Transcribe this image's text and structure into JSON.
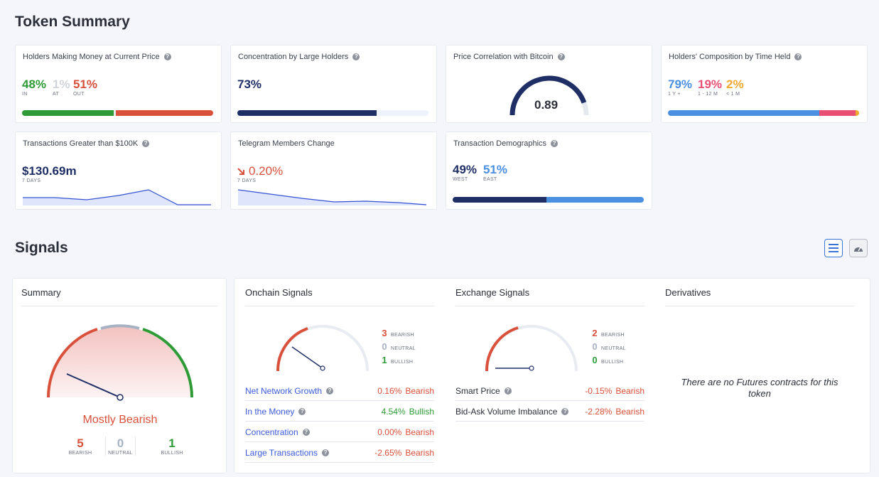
{
  "token_summary": {
    "title": "Token Summary",
    "holders_money": {
      "title": "Holders Making Money at Current Price",
      "in_value": "48%",
      "in_label": "IN",
      "at_value": "1%",
      "at_label": "AT",
      "out_value": "51%",
      "out_label": "OUT",
      "fractions": [
        0.48,
        0.01,
        0.51
      ]
    },
    "concentration": {
      "title": "Concentration by Large Holders",
      "value": "73%",
      "fraction": 0.73
    },
    "price_correlation": {
      "title": "Price Correlation with Bitcoin",
      "value": "0.89",
      "fraction": 0.89
    },
    "composition": {
      "title": "Holders' Composition by Time Held",
      "y1_value": "79%",
      "y1_label": "1 Y +",
      "m12_value": "19%",
      "m12_label": "1 - 12 M",
      "m1_value": "2%",
      "m1_label": "< 1 M",
      "fractions": [
        0.79,
        0.19,
        0.02
      ]
    },
    "transactions": {
      "title": "Transactions Greater than $100K",
      "value": "$130.69m",
      "period": "7 DAYS"
    },
    "telegram": {
      "title": "Telegram Members Change",
      "value": "0.20%",
      "period": "7 DAYS"
    },
    "demographics": {
      "title": "Transaction Demographics",
      "west_value": "49%",
      "west_label": "WEST",
      "east_value": "51%",
      "east_label": "EAST",
      "fractions": [
        0.49,
        0.51
      ]
    }
  },
  "signals": {
    "title": "Signals",
    "summary": {
      "title": "Summary",
      "verdict": "Mostly Bearish",
      "bearish_count": "5",
      "bearish_label": "BEARISH",
      "neutral_count": "0",
      "neutral_label": "NEUTRAL",
      "bullish_count": "1",
      "bullish_label": "BULLISH"
    },
    "onchain": {
      "title": "Onchain Signals",
      "bearish_count": "3",
      "bearish_label": "BEARISH",
      "neutral_count": "0",
      "neutral_label": "NEUTRAL",
      "bullish_count": "1",
      "bullish_label": "BULLISH",
      "rows": [
        {
          "name": "Net Network Growth",
          "value": "0.16%",
          "signal": "Bearish"
        },
        {
          "name": "In the Money",
          "value": "4.54%",
          "signal": "Bullish"
        },
        {
          "name": "Concentration",
          "value": "0.00%",
          "signal": "Bearish"
        },
        {
          "name": "Large Transactions",
          "value": "-2.65%",
          "signal": "Bearish"
        }
      ]
    },
    "exchange": {
      "title": "Exchange Signals",
      "bearish_count": "2",
      "bearish_label": "BEARISH",
      "neutral_count": "0",
      "neutral_label": "NEUTRAL",
      "bullish_count": "0",
      "bullish_label": "BULLISH",
      "rows": [
        {
          "name": "Smart Price",
          "value": "-0.15%",
          "signal": "Bearish"
        },
        {
          "name": "Bid-Ask Volume Imbalance",
          "value": "-2.28%",
          "signal": "Bearish"
        }
      ]
    },
    "derivatives": {
      "title": "Derivatives",
      "empty_text": "There are no Futures contracts for this token"
    }
  },
  "colors": {
    "green": "#2e9b36",
    "red": "#d9503b",
    "grey": "#d7dbe2",
    "navy": "#1f2f66",
    "blue": "#4a8fe0",
    "pink": "#e94f73",
    "orange": "#f0a92f"
  },
  "icons": [
    "help-icon",
    "trend-down-arrow-icon",
    "list-view-icon",
    "gauge-view-icon"
  ]
}
